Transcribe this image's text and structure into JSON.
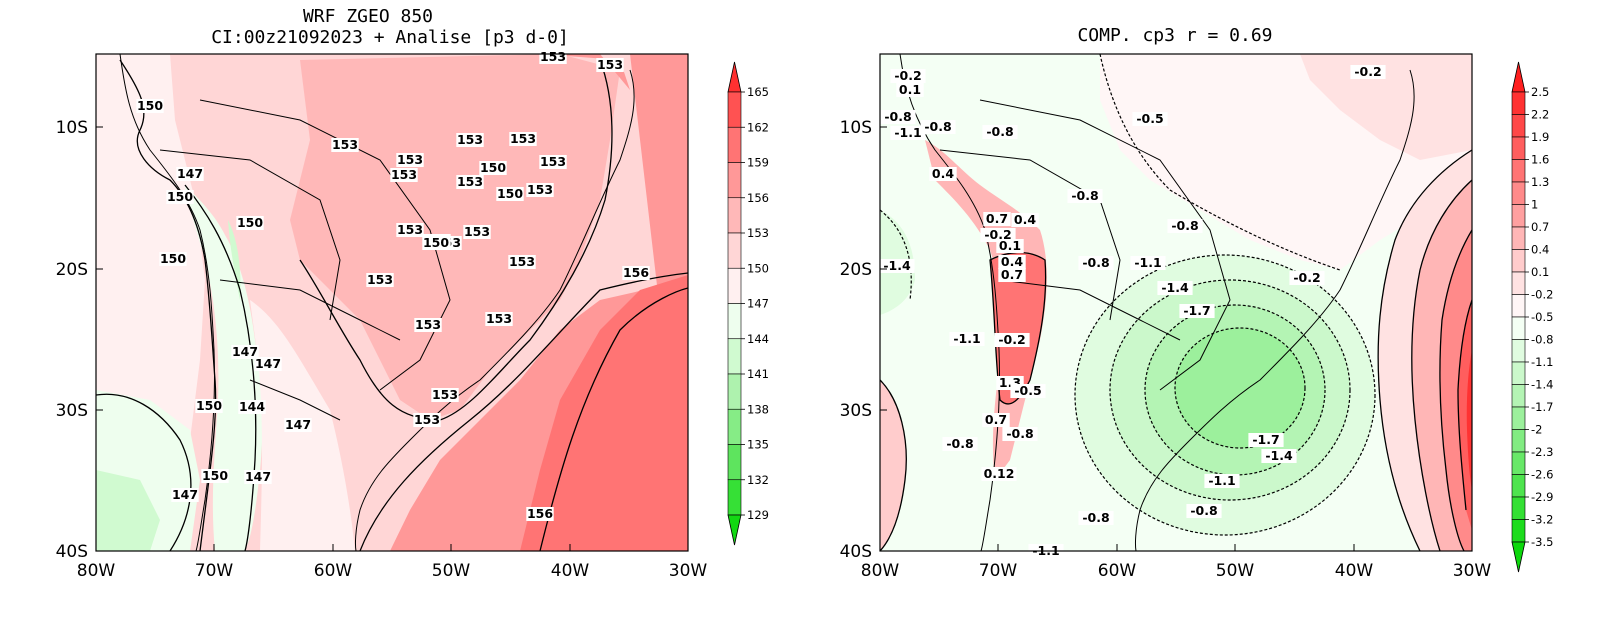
{
  "left_panel": {
    "title_line1": "WRF ZGEO 850",
    "title_line2": "CI:00z21092023 + Analise  [p3 d-0]",
    "x_ticks": [
      "80W",
      "70W",
      "60W",
      "50W",
      "40W",
      "30W"
    ],
    "y_ticks": [
      "10S",
      "20S",
      "30S",
      "40S"
    ],
    "colorbar_labels": [
      "165",
      "162",
      "159",
      "156",
      "153",
      "150",
      "147",
      "144",
      "141",
      "138",
      "135",
      "132",
      "129"
    ],
    "colorbar_colors": [
      "#ff3030",
      "#ff5252",
      "#ff7474",
      "#ff9898",
      "#ffb8b8",
      "#ffd6d6",
      "#fff0f0",
      "#eefeee",
      "#d0fad0",
      "#aef2ae",
      "#86ec86",
      "#5ee45e",
      "#36e036",
      "#12d812"
    ],
    "contour_labels": [
      "150",
      "153",
      "153",
      "153",
      "153",
      "153",
      "153",
      "147",
      "150",
      "150",
      "153",
      "150",
      "153",
      "150",
      "153",
      "153",
      "150",
      "153",
      "150",
      "153",
      "153",
      "156",
      "153",
      "153",
      "147",
      "147",
      "150",
      "144",
      "147",
      "153",
      "153",
      "150",
      "147",
      "147",
      "156",
      "153",
      "153",
      "150"
    ]
  },
  "right_panel": {
    "title": "COMP. cp3  r =  0.69",
    "x_ticks": [
      "80W",
      "70W",
      "60W",
      "50W",
      "40W",
      "30W"
    ],
    "y_ticks": [
      "10S",
      "20S",
      "30S",
      "40S"
    ],
    "colorbar_labels": [
      "2.5",
      "2.2",
      "1.9",
      "1.6",
      "1.3",
      "1",
      "0.7",
      "0.4",
      "0.1",
      "-0.2",
      "-0.5",
      "-0.8",
      "-1.1",
      "-1.4",
      "-1.7",
      "-2",
      "-2.3",
      "-2.6",
      "-2.9",
      "-3.2",
      "-3.5"
    ],
    "colorbar_colors": [
      "#ff1f1f",
      "#ff3232",
      "#ff4848",
      "#ff5e5e",
      "#ff7474",
      "#ff8a8a",
      "#ffa0a0",
      "#ffb6b6",
      "#ffcccc",
      "#ffe2e2",
      "#fff6f6",
      "#f4fff4",
      "#e0fce0",
      "#cbf8cb",
      "#b4f4b4",
      "#9cf09c",
      "#82ec82",
      "#68e868",
      "#4ee44e",
      "#34e034",
      "#1ddc1d",
      "#0cd80c"
    ],
    "contour_labels": [
      "-0.2",
      "0.1",
      "-0.8",
      "-1.1",
      "-0.8",
      "-0.8",
      "0.4",
      "-0.5",
      "-0.8",
      "0.7",
      "0.4",
      "-0.2",
      "0.1",
      "0.4",
      "0.7",
      "-0.8",
      "-1.1",
      "-1.4",
      "-1.4",
      "-1.7",
      "-0.2",
      "-1.1",
      "-0.2",
      "1.3",
      "-0.5",
      "0.7",
      "-0.8",
      "-0.8",
      "-1.7",
      "-1.4",
      "-1.1",
      "-0.8",
      "-0.8",
      "-1.1",
      "0.12",
      "-0.2",
      "-0.8"
    ]
  }
}
